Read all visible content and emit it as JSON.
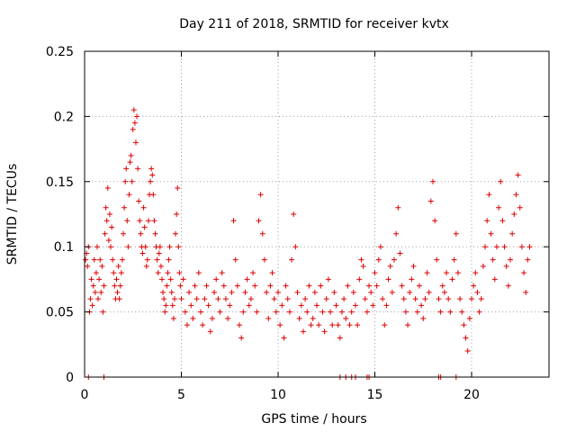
{
  "chart_data": {
    "type": "scatter",
    "title": "Day 211 of 2018, SRMTID for receiver kvtx",
    "xlabel": "GPS time / hours",
    "ylabel": "SRMTID / TECUs",
    "xlim": [
      0,
      24
    ],
    "ylim": [
      0,
      0.25
    ],
    "xticks": [
      0,
      5,
      10,
      15,
      20
    ],
    "xtick_labels": [
      "0",
      "5",
      "10",
      "15",
      "20"
    ],
    "yticks": [
      0,
      0.05,
      0.1,
      0.15,
      0.2,
      0.25
    ],
    "ytick_labels": [
      "0",
      "0.05",
      "0.1",
      "0.15",
      "0.2",
      "0.25"
    ],
    "grid": true,
    "marker": "+",
    "series": [
      {
        "name": "SRMTID",
        "color": "#e00000",
        "points": [
          [
            0.05,
            0.09
          ],
          [
            0.1,
            0.095
          ],
          [
            0.15,
            0.085
          ],
          [
            0.2,
            0.1
          ],
          [
            0.25,
            0.05
          ],
          [
            0.3,
            0.06
          ],
          [
            0.35,
            0.075
          ],
          [
            0.4,
            0.055
          ],
          [
            0.45,
            0.07
          ],
          [
            0.5,
            0.09
          ],
          [
            0.55,
            0.065
          ],
          [
            0.6,
            0.08
          ],
          [
            0.65,
            0.1
          ],
          [
            0.7,
            0.06
          ],
          [
            0.75,
            0.075
          ],
          [
            0.8,
            0.09
          ],
          [
            0.85,
            0.065
          ],
          [
            0.9,
            0.085
          ],
          [
            0.95,
            0.05
          ],
          [
            1.0,
            0.07
          ],
          [
            1.05,
            0.11
          ],
          [
            1.1,
            0.13
          ],
          [
            1.15,
            0.12
          ],
          [
            1.2,
            0.145
          ],
          [
            1.25,
            0.105
          ],
          [
            1.3,
            0.125
          ],
          [
            1.35,
            0.1
          ],
          [
            1.4,
            0.115
          ],
          [
            1.45,
            0.09
          ],
          [
            1.5,
            0.08
          ],
          [
            1.55,
            0.07
          ],
          [
            1.6,
            0.06
          ],
          [
            1.65,
            0.075
          ],
          [
            1.7,
            0.065
          ],
          [
            1.75,
            0.085
          ],
          [
            1.8,
            0.06
          ],
          [
            1.85,
            0.07
          ],
          [
            1.9,
            0.08
          ],
          [
            1.95,
            0.09
          ],
          [
            2.0,
            0.11
          ],
          [
            2.05,
            0.13
          ],
          [
            2.1,
            0.15
          ],
          [
            2.15,
            0.16
          ],
          [
            2.2,
            0.12
          ],
          [
            2.25,
            0.1
          ],
          [
            2.3,
            0.14
          ],
          [
            2.35,
            0.165
          ],
          [
            2.4,
            0.17
          ],
          [
            2.45,
            0.15
          ],
          [
            2.5,
            0.19
          ],
          [
            2.55,
            0.205
          ],
          [
            2.6,
            0.195
          ],
          [
            2.65,
            0.18
          ],
          [
            2.7,
            0.2
          ],
          [
            2.75,
            0.16
          ],
          [
            2.8,
            0.135
          ],
          [
            2.85,
            0.12
          ],
          [
            2.9,
            0.11
          ],
          [
            2.95,
            0.1
          ],
          [
            3.0,
            0.095
          ],
          [
            3.05,
            0.13
          ],
          [
            3.1,
            0.115
          ],
          [
            3.15,
            0.1
          ],
          [
            3.2,
            0.085
          ],
          [
            3.25,
            0.09
          ],
          [
            3.3,
            0.12
          ],
          [
            3.35,
            0.14
          ],
          [
            3.4,
            0.15
          ],
          [
            3.45,
            0.16
          ],
          [
            3.5,
            0.155
          ],
          [
            3.55,
            0.14
          ],
          [
            3.6,
            0.12
          ],
          [
            3.65,
            0.11
          ],
          [
            3.7,
            0.1
          ],
          [
            3.75,
            0.09
          ],
          [
            3.8,
            0.08
          ],
          [
            3.85,
            0.095
          ],
          [
            3.9,
            0.1
          ],
          [
            3.95,
            0.085
          ],
          [
            4.0,
            0.075
          ],
          [
            4.05,
            0.065
          ],
          [
            4.1,
            0.06
          ],
          [
            4.15,
            0.05
          ],
          [
            4.2,
            0.055
          ],
          [
            4.25,
            0.07
          ],
          [
            4.3,
            0.08
          ],
          [
            4.35,
            0.09
          ],
          [
            4.4,
            0.1
          ],
          [
            4.45,
            0.075
          ],
          [
            4.5,
            0.065
          ],
          [
            4.55,
            0.055
          ],
          [
            4.6,
            0.045
          ],
          [
            4.65,
            0.06
          ],
          [
            4.7,
            0.11
          ],
          [
            4.75,
            0.125
          ],
          [
            4.8,
            0.145
          ],
          [
            4.85,
            0.1
          ],
          [
            4.9,
            0.08
          ],
          [
            4.95,
            0.07
          ],
          [
            5.0,
            0.06
          ],
          [
            5.1,
            0.075
          ],
          [
            5.2,
            0.05
          ],
          [
            5.3,
            0.04
          ],
          [
            5.4,
            0.065
          ],
          [
            5.5,
            0.055
          ],
          [
            5.6,
            0.045
          ],
          [
            5.7,
            0.07
          ],
          [
            5.8,
            0.06
          ],
          [
            5.9,
            0.08
          ],
          [
            6.0,
            0.05
          ],
          [
            6.1,
            0.04
          ],
          [
            6.2,
            0.06
          ],
          [
            6.3,
            0.07
          ],
          [
            6.4,
            0.055
          ],
          [
            6.5,
            0.035
          ],
          [
            6.6,
            0.045
          ],
          [
            6.7,
            0.065
          ],
          [
            6.8,
            0.075
          ],
          [
            6.9,
            0.06
          ],
          [
            7.0,
            0.05
          ],
          [
            7.1,
            0.08
          ],
          [
            7.2,
            0.07
          ],
          [
            7.3,
            0.06
          ],
          [
            7.4,
            0.045
          ],
          [
            7.5,
            0.055
          ],
          [
            7.6,
            0.065
          ],
          [
            7.7,
            0.12
          ],
          [
            7.8,
            0.09
          ],
          [
            7.9,
            0.07
          ],
          [
            8.0,
            0.04
          ],
          [
            8.1,
            0.03
          ],
          [
            8.2,
            0.05
          ],
          [
            8.3,
            0.065
          ],
          [
            8.4,
            0.075
          ],
          [
            8.5,
            0.055
          ],
          [
            8.6,
            0.06
          ],
          [
            8.7,
            0.08
          ],
          [
            8.8,
            0.07
          ],
          [
            8.9,
            0.05
          ],
          [
            9.0,
            0.12
          ],
          [
            9.1,
            0.14
          ],
          [
            9.2,
            0.11
          ],
          [
            9.3,
            0.09
          ],
          [
            9.4,
            0.065
          ],
          [
            9.5,
            0.045
          ],
          [
            9.6,
            0.07
          ],
          [
            9.7,
            0.08
          ],
          [
            9.8,
            0.06
          ],
          [
            9.9,
            0.05
          ],
          [
            10.0,
            0.065
          ],
          [
            10.1,
            0.04
          ],
          [
            10.2,
            0.055
          ],
          [
            10.3,
            0.03
          ],
          [
            10.4,
            0.07
          ],
          [
            10.5,
            0.06
          ],
          [
            10.6,
            0.05
          ],
          [
            10.7,
            0.09
          ],
          [
            10.8,
            0.125
          ],
          [
            10.9,
            0.1
          ],
          [
            11.0,
            0.065
          ],
          [
            11.1,
            0.045
          ],
          [
            11.2,
            0.055
          ],
          [
            11.3,
            0.035
          ],
          [
            11.4,
            0.06
          ],
          [
            11.5,
            0.05
          ],
          [
            11.6,
            0.07
          ],
          [
            11.7,
            0.04
          ],
          [
            11.8,
            0.045
          ],
          [
            11.9,
            0.065
          ],
          [
            12.0,
            0.055
          ],
          [
            12.1,
            0.04
          ],
          [
            12.2,
            0.07
          ],
          [
            12.3,
            0.05
          ],
          [
            12.4,
            0.035
          ],
          [
            12.5,
            0.06
          ],
          [
            12.6,
            0.075
          ],
          [
            12.7,
            0.05
          ],
          [
            12.8,
            0.04
          ],
          [
            12.9,
            0.065
          ],
          [
            13.0,
            0.055
          ],
          [
            13.1,
            0.04
          ],
          [
            13.2,
            0.03
          ],
          [
            13.3,
            0.05
          ],
          [
            13.4,
            0.06
          ],
          [
            13.5,
            0.045
          ],
          [
            13.6,
            0.07
          ],
          [
            13.7,
            0.04
          ],
          [
            13.8,
            0.05
          ],
          [
            13.9,
            0.065
          ],
          [
            14.0,
            0.055
          ],
          [
            14.1,
            0.04
          ],
          [
            14.2,
            0.075
          ],
          [
            14.3,
            0.09
          ],
          [
            14.4,
            0.085
          ],
          [
            14.5,
            0.06
          ],
          [
            14.6,
            0.05
          ],
          [
            14.7,
            0.07
          ],
          [
            14.8,
            0.065
          ],
          [
            14.9,
            0.055
          ],
          [
            15.0,
            0.08
          ],
          [
            15.1,
            0.07
          ],
          [
            15.2,
            0.09
          ],
          [
            15.3,
            0.1
          ],
          [
            15.4,
            0.06
          ],
          [
            15.5,
            0.04
          ],
          [
            15.6,
            0.055
          ],
          [
            15.7,
            0.075
          ],
          [
            15.8,
            0.085
          ],
          [
            15.9,
            0.065
          ],
          [
            16.0,
            0.09
          ],
          [
            16.1,
            0.11
          ],
          [
            16.2,
            0.13
          ],
          [
            16.3,
            0.095
          ],
          [
            16.4,
            0.07
          ],
          [
            16.5,
            0.06
          ],
          [
            16.6,
            0.05
          ],
          [
            16.7,
            0.04
          ],
          [
            16.8,
            0.065
          ],
          [
            16.9,
            0.075
          ],
          [
            17.0,
            0.085
          ],
          [
            17.1,
            0.06
          ],
          [
            17.2,
            0.05
          ],
          [
            17.3,
            0.07
          ],
          [
            17.4,
            0.055
          ],
          [
            17.5,
            0.045
          ],
          [
            17.6,
            0.06
          ],
          [
            17.7,
            0.08
          ],
          [
            17.8,
            0.065
          ],
          [
            17.9,
            0.135
          ],
          [
            18.0,
            0.15
          ],
          [
            18.1,
            0.12
          ],
          [
            18.2,
            0.09
          ],
          [
            18.3,
            0.06
          ],
          [
            18.4,
            0.05
          ],
          [
            18.5,
            0.07
          ],
          [
            18.6,
            0.065
          ],
          [
            18.7,
            0.08
          ],
          [
            18.8,
            0.06
          ],
          [
            18.9,
            0.05
          ],
          [
            19.0,
            0.075
          ],
          [
            19.1,
            0.09
          ],
          [
            19.2,
            0.11
          ],
          [
            19.3,
            0.08
          ],
          [
            19.4,
            0.06
          ],
          [
            19.5,
            0.05
          ],
          [
            19.6,
            0.04
          ],
          [
            19.7,
            0.03
          ],
          [
            19.8,
            0.02
          ],
          [
            19.9,
            0.045
          ],
          [
            20.0,
            0.06
          ],
          [
            20.1,
            0.07
          ],
          [
            20.2,
            0.08
          ],
          [
            20.3,
            0.065
          ],
          [
            20.4,
            0.05
          ],
          [
            20.5,
            0.06
          ],
          [
            20.6,
            0.085
          ],
          [
            20.7,
            0.1
          ],
          [
            20.8,
            0.12
          ],
          [
            20.9,
            0.14
          ],
          [
            21.0,
            0.11
          ],
          [
            21.1,
            0.09
          ],
          [
            21.2,
            0.075
          ],
          [
            21.3,
            0.1
          ],
          [
            21.4,
            0.13
          ],
          [
            21.5,
            0.15
          ],
          [
            21.6,
            0.12
          ],
          [
            21.7,
            0.1
          ],
          [
            21.8,
            0.085
          ],
          [
            21.9,
            0.07
          ],
          [
            22.0,
            0.09
          ],
          [
            22.1,
            0.11
          ],
          [
            22.2,
            0.125
          ],
          [
            22.3,
            0.14
          ],
          [
            22.4,
            0.155
          ],
          [
            22.5,
            0.13
          ],
          [
            22.6,
            0.1
          ],
          [
            22.7,
            0.08
          ],
          [
            22.8,
            0.065
          ],
          [
            22.9,
            0.09
          ],
          [
            23.0,
            0.1
          ],
          [
            0.2,
            0.0
          ],
          [
            1.0,
            0.0
          ],
          [
            13.2,
            0.0
          ],
          [
            13.5,
            0.0
          ],
          [
            13.8,
            0.0
          ],
          [
            14.0,
            0.0
          ],
          [
            14.6,
            0.0
          ],
          [
            14.7,
            0.0
          ],
          [
            18.3,
            0.0
          ],
          [
            18.4,
            0.0
          ],
          [
            19.2,
            0.0
          ]
        ]
      }
    ]
  }
}
